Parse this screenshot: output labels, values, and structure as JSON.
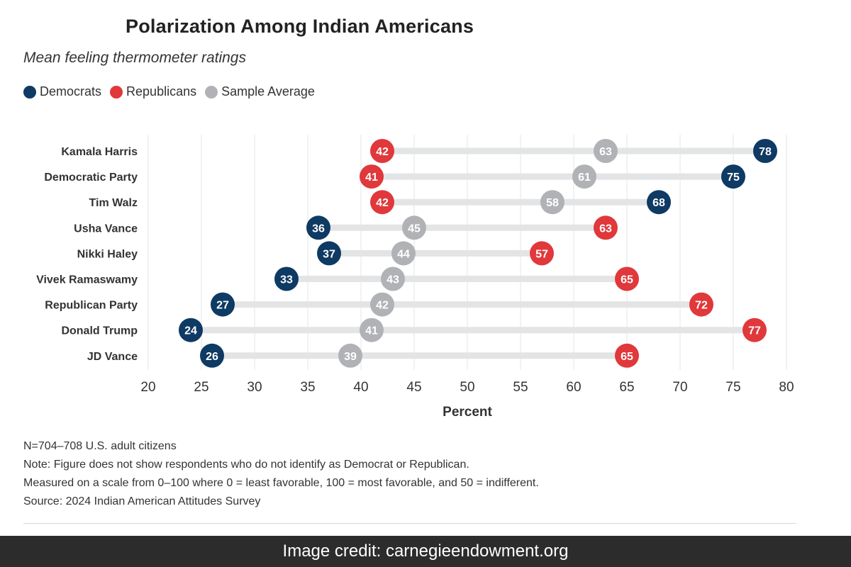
{
  "chart_data": {
    "type": "dot-range",
    "title": "Polarization Among Indian Americans",
    "subtitle": "Mean feeling thermometer ratings",
    "xlabel": "Percent",
    "ylabel": "",
    "xlim": [
      20,
      80
    ],
    "ticks": [
      20,
      25,
      30,
      35,
      40,
      45,
      50,
      55,
      60,
      65,
      70,
      75,
      80
    ],
    "categories": [
      "Kamala Harris",
      "Democratic Party",
      "Tim Walz",
      "Usha Vance",
      "Nikki Haley",
      "Vivek Ramaswamy",
      "Republican Party",
      "Donald Trump",
      "JD Vance"
    ],
    "series": [
      {
        "name": "Democrats",
        "color": "#0e3a63",
        "values": [
          78,
          75,
          68,
          36,
          37,
          33,
          27,
          24,
          26
        ]
      },
      {
        "name": "Republicans",
        "color": "#e0383b",
        "values": [
          42,
          41,
          42,
          63,
          57,
          65,
          72,
          77,
          65
        ]
      },
      {
        "name": "Sample Average",
        "color": "#b0b2b6",
        "values": [
          63,
          61,
          58,
          45,
          44,
          43,
          42,
          41,
          39
        ]
      }
    ],
    "grid": true,
    "legend": "top-left"
  },
  "notes": [
    "N=704–708 U.S. adult citizens",
    "Note: Figure does not show respondents who do not identify as Democrat or Republican.",
    "Measured on a scale from 0–100 where 0 = least favorable, 100 = most favorable, and 50 = indifferent.",
    "Source: 2024 Indian American Attitudes Survey"
  ],
  "credit": "Image credit: carnegieendowment.org"
}
